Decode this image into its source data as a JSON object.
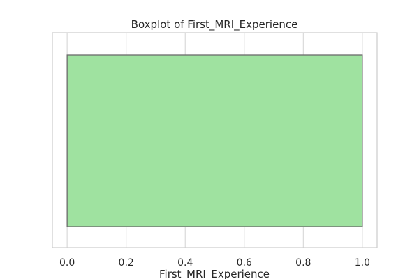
{
  "chart_data": {
    "type": "boxplot",
    "orientation": "horizontal",
    "title": "Boxplot of First_MRI_Experience",
    "xlabel": "First_MRI_Experience",
    "ylabel": "",
    "xlim": [
      -0.05,
      1.05
    ],
    "xticks": [
      0.0,
      0.2,
      0.4,
      0.6,
      0.8,
      1.0
    ],
    "xtick_labels": [
      "0.0",
      "0.2",
      "0.4",
      "0.6",
      "0.8",
      "1.0"
    ],
    "grid": true,
    "box": {
      "min": 0.0,
      "q1": 0.0,
      "median": 1.0,
      "q3": 1.0,
      "max": 1.0,
      "fill_color": "#9fe2a0",
      "edge_color": "#6b6b6b"
    },
    "colors": {
      "grid": "#d6d6d6",
      "spine": "#cccccc",
      "text": "#262626"
    }
  }
}
